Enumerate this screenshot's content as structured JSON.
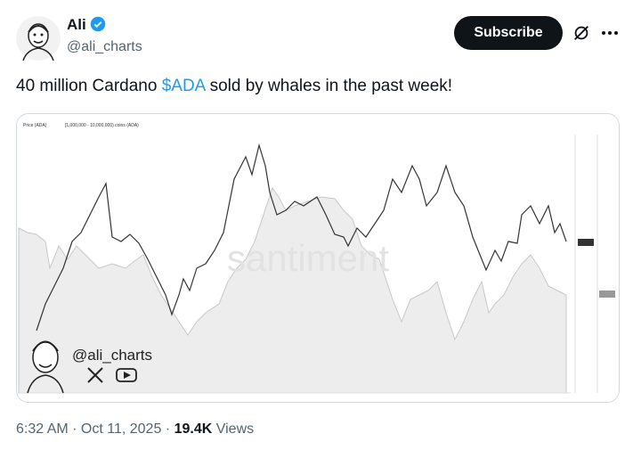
{
  "author": {
    "name": "Ali",
    "handle": "@ali_charts"
  },
  "subscribe_button": "Subscribe",
  "post": {
    "text_before": "40 million Cardano ",
    "cashtag": "$ADA",
    "text_after": " sold by whales in the past week!"
  },
  "image": {
    "legend": [
      "Price (ADA)",
      "[1,000,000 - 10,000,000) coins (ADA)"
    ],
    "watermark": "santiment",
    "signature": "@ali_charts"
  },
  "footer": {
    "time": "6:32 AM · Oct 11, 2025 · ",
    "views_count": "19.4K",
    "views_label": " Views"
  }
}
